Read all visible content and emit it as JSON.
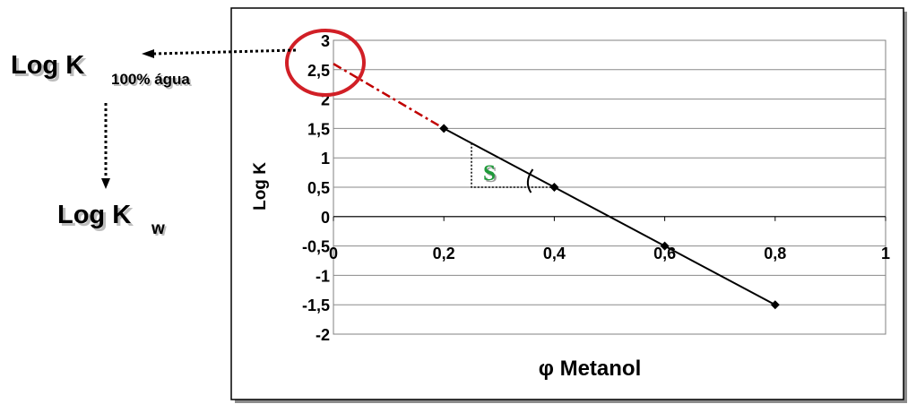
{
  "annotations": {
    "logk100_main": "Log K",
    "logk100_sub": "100% água",
    "logkw_main": "Log K",
    "logkw_sub": "w",
    "slope_label": "S"
  },
  "colors": {
    "extrapolation_line": "#c00000",
    "circle": "#d11f26",
    "slope_label": "#1f9a3a",
    "data_line": "#000000"
  },
  "chart_data": {
    "type": "line",
    "ylabel": "Log K",
    "xlabel": "φ Metanol",
    "xlim": [
      0,
      1
    ],
    "ylim": [
      -2,
      3
    ],
    "x_ticks": [
      0,
      0.2,
      0.4,
      0.6,
      0.8,
      1
    ],
    "x_tick_labels": [
      "0",
      "0,2",
      "0,4",
      "0,6",
      "0,8",
      "1"
    ],
    "y_ticks": [
      3,
      2.5,
      2,
      1.5,
      1,
      0.5,
      0,
      -0.5,
      -1,
      -1.5,
      -2
    ],
    "y_tick_labels": [
      "3",
      "2,5",
      "2",
      "1,5",
      "1",
      "0,5",
      "0",
      "-0,5",
      "-1",
      "-1,5",
      "-2"
    ],
    "grid": "horizontal",
    "series": [
      {
        "x": [
          0.2,
          0.4,
          0.6,
          0.8
        ],
        "y": [
          1.5,
          0.5,
          -0.5,
          -1.5
        ],
        "marker": "diamond"
      }
    ],
    "extrapolation": {
      "x": [
        0,
        0.2
      ],
      "y": [
        2.6,
        1.5
      ],
      "style": "dash-dot"
    },
    "slope_triangle": {
      "x": [
        0.25,
        0.4
      ],
      "y": [
        1.25,
        0.5
      ]
    }
  }
}
